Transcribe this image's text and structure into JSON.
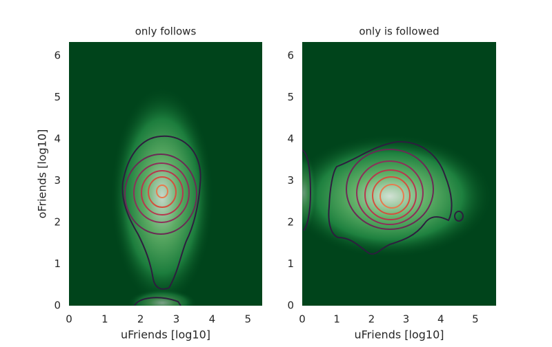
{
  "chart_data": [
    {
      "type": "density",
      "title": "only follows",
      "x_label": "uFriends [log10]",
      "y_label": "oFriends [log10]",
      "color": "#00441b",
      "xlim": [
        0,
        5.4
      ],
      "ylim": [
        0,
        6.33
      ],
      "xticks": [
        0,
        1,
        2,
        3,
        4,
        5
      ],
      "yticks": [
        0,
        1,
        2,
        3,
        4,
        5,
        6
      ]
    },
    {
      "type": "density",
      "title": "only is followed",
      "x_label": "uFriends [log10]",
      "color": "#00441b",
      "xlim": [
        0,
        5.6
      ],
      "ylim": [
        0,
        6.33
      ],
      "xticks": [
        0,
        1,
        2,
        3,
        4,
        5
      ],
      "yticks": [
        0,
        1,
        2,
        3,
        4,
        5,
        6
      ]
    }
  ]
}
